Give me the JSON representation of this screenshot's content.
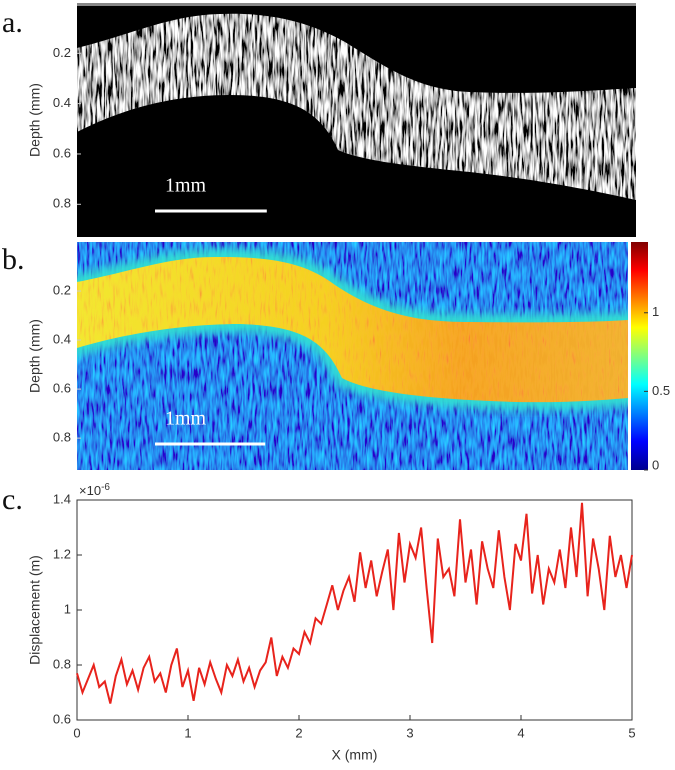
{
  "chart_data": [
    {
      "type": "image",
      "panel_label": "a.",
      "ylabel": "Depth (mm)",
      "xlim": [
        0,
        5
      ],
      "ylim": [
        0,
        0.93
      ],
      "yticks": [
        0.2,
        0.4,
        0.6,
        0.8
      ],
      "scale_bar": {
        "label": "1mm",
        "length": 1
      }
    },
    {
      "type": "heatmap",
      "panel_label": "b.",
      "ylabel": "Depth (mm)",
      "xlim": [
        0,
        5
      ],
      "ylim": [
        0,
        0.93
      ],
      "yticks": [
        0.2,
        0.4,
        0.6,
        0.8
      ],
      "scale_bar": {
        "label": "1mm",
        "length": 1
      },
      "colorbar": {
        "lim": [
          0,
          1.45
        ],
        "ticks": [
          0,
          0.5,
          1
        ]
      }
    },
    {
      "type": "line",
      "panel_label": "c.",
      "xlabel": "X (mm)",
      "ylabel": "Displacement (m)",
      "y_multiplier": {
        "base": "×10",
        "exponent": "-6"
      },
      "xlim": [
        0,
        5
      ],
      "ylim": [
        0.6,
        1.4
      ],
      "xticks": [
        0,
        1,
        2,
        3,
        4,
        5
      ],
      "yticks": [
        0.6,
        0.8,
        1,
        1.2,
        1.4
      ],
      "color": "#e8231c",
      "x": [
        0,
        0.05,
        0.1,
        0.15,
        0.2,
        0.25,
        0.3,
        0.35,
        0.4,
        0.45,
        0.5,
        0.55,
        0.6,
        0.65,
        0.7,
        0.75,
        0.8,
        0.85,
        0.9,
        0.95,
        1,
        1.05,
        1.1,
        1.15,
        1.2,
        1.25,
        1.3,
        1.35,
        1.4,
        1.45,
        1.5,
        1.55,
        1.6,
        1.65,
        1.7,
        1.75,
        1.8,
        1.85,
        1.9,
        1.95,
        2,
        2.05,
        2.1,
        2.15,
        2.2,
        2.25,
        2.3,
        2.35,
        2.4,
        2.45,
        2.5,
        2.55,
        2.6,
        2.65,
        2.7,
        2.75,
        2.8,
        2.85,
        2.9,
        2.95,
        3,
        3.05,
        3.1,
        3.15,
        3.2,
        3.25,
        3.3,
        3.35,
        3.4,
        3.45,
        3.5,
        3.55,
        3.6,
        3.65,
        3.7,
        3.75,
        3.8,
        3.85,
        3.9,
        3.95,
        4,
        4.05,
        4.1,
        4.15,
        4.2,
        4.25,
        4.3,
        4.35,
        4.4,
        4.45,
        4.5,
        4.55,
        4.6,
        4.65,
        4.7,
        4.75,
        4.8,
        4.85,
        4.9,
        4.95,
        5
      ],
      "values": [
        0.77,
        0.7,
        0.75,
        0.8,
        0.72,
        0.74,
        0.66,
        0.76,
        0.82,
        0.73,
        0.78,
        0.71,
        0.79,
        0.83,
        0.74,
        0.77,
        0.7,
        0.8,
        0.86,
        0.72,
        0.78,
        0.67,
        0.79,
        0.73,
        0.81,
        0.75,
        0.7,
        0.8,
        0.76,
        0.82,
        0.74,
        0.79,
        0.72,
        0.78,
        0.81,
        0.9,
        0.76,
        0.83,
        0.79,
        0.86,
        0.84,
        0.92,
        0.88,
        0.97,
        0.95,
        1.02,
        1.09,
        1.0,
        1.07,
        1.12,
        1.03,
        1.21,
        1.08,
        1.18,
        1.05,
        1.14,
        1.22,
        1.0,
        1.28,
        1.1,
        1.24,
        1.19,
        1.3,
        1.08,
        0.88,
        1.26,
        1.12,
        1.15,
        1.05,
        1.33,
        1.1,
        1.22,
        1.02,
        1.25,
        1.15,
        1.08,
        1.29,
        1.12,
        1.0,
        1.24,
        1.18,
        1.35,
        1.06,
        1.2,
        1.02,
        1.15,
        1.1,
        1.22,
        1.08,
        1.3,
        1.12,
        1.39,
        1.05,
        1.26,
        1.15,
        1.0,
        1.27,
        1.12,
        1.2,
        1.08,
        1.2
      ]
    }
  ]
}
